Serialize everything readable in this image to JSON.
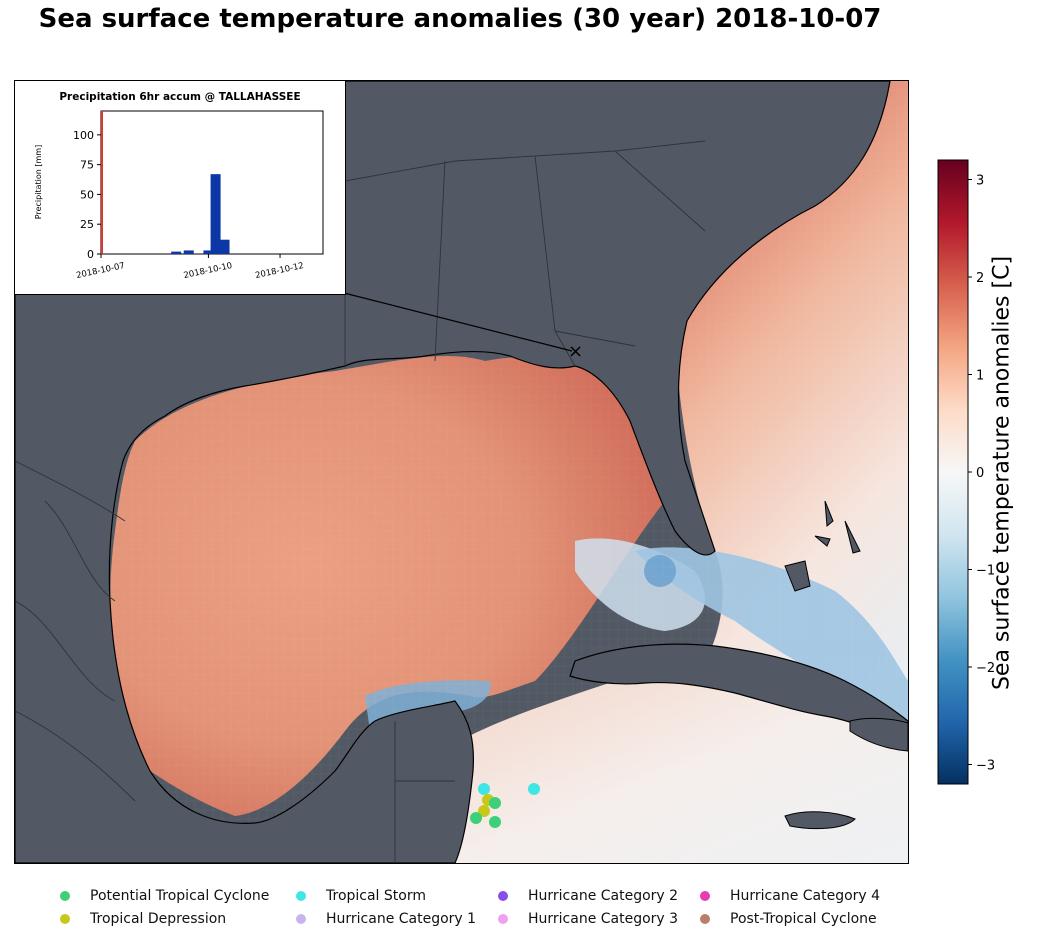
{
  "title": "Sea surface temperature anomalies (30 year) 2018-10-07",
  "inset": {
    "title": "Precipitation 6hr accum @ TALLAHASSEE",
    "ylabel": "Precipitation [mm]",
    "yticks": [
      "0",
      "25",
      "50",
      "75",
      "100"
    ],
    "xticks": [
      "2018-10-07",
      "2018-10-10",
      "2018-10-12"
    ],
    "current_time_color": "#e8322a",
    "bar_color": "#0d36a6",
    "bars": [
      {
        "day": 2.1,
        "value": 2
      },
      {
        "day": 2.45,
        "value": 3
      },
      {
        "day": 3.0,
        "value": 3
      },
      {
        "day": 3.2,
        "value": 67
      },
      {
        "day": 3.45,
        "value": 12
      }
    ],
    "ylim": [
      0,
      120
    ]
  },
  "station_marker": "×",
  "colorbar": {
    "label": "Sea surface temperature anomalies [C]",
    "ticks": [
      "3",
      "2",
      "1",
      "0",
      "−1",
      "−2",
      "−3"
    ],
    "range": [
      -3.2,
      3.2
    ],
    "colors": [
      "#67001f",
      "#b2182b",
      "#d6604d",
      "#f4a582",
      "#fddbc7",
      "#f7f7f7",
      "#d1e5f0",
      "#92c5de",
      "#4393c3",
      "#2166ac",
      "#053061"
    ]
  },
  "storm_points": [
    {
      "category": "Tropical Storm",
      "color": "#40e6e6"
    },
    {
      "category": "Tropical Storm",
      "color": "#40e6e6"
    },
    {
      "category": "Tropical Depression",
      "color": "#c8c81a"
    },
    {
      "category": "Tropical Depression",
      "color": "#c8c81a"
    },
    {
      "category": "Potential Tropical Cyclone",
      "color": "#3ecf7a"
    },
    {
      "category": "Potential Tropical Cyclone",
      "color": "#3ecf7a"
    },
    {
      "category": "Potential Tropical Cyclone",
      "color": "#3ecf7a"
    }
  ],
  "legend": [
    {
      "label": "Potential Tropical Cyclone",
      "color": "#3ecf7a"
    },
    {
      "label": "Tropical Depression",
      "color": "#c8c81a"
    },
    {
      "label": "Tropical Storm",
      "color": "#40e6e6"
    },
    {
      "label": "Hurricane Category 1",
      "color": "#c9b3f0"
    },
    {
      "label": "Hurricane Category 2",
      "color": "#8a4de8"
    },
    {
      "label": "Hurricane Category 3",
      "color": "#f0a0f0"
    },
    {
      "label": "Hurricane Category 4",
      "color": "#e63cb4"
    },
    {
      "label": "Post-Tropical Cyclone",
      "color": "#b8806a"
    }
  ]
}
